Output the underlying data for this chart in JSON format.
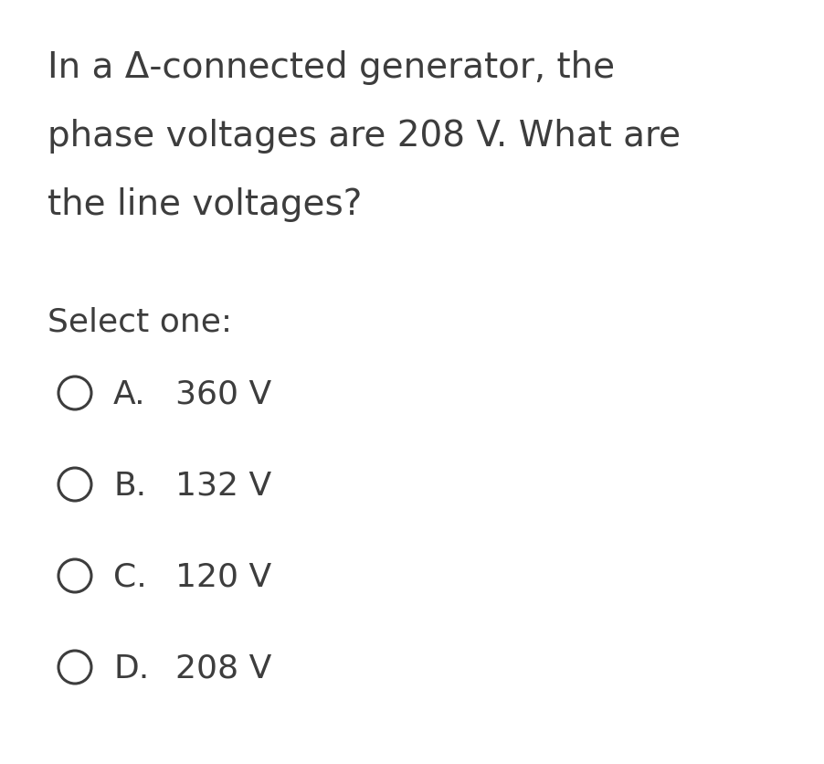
{
  "background_color": "#ffffff",
  "text_color": "#3d3d3d",
  "question_lines": [
    "In a Δ-connected generator, the",
    "phase voltages are 208 V. What are",
    "the line voltages?"
  ],
  "select_label": "Select one:",
  "options": [
    {
      "letter": "A.",
      "text": "360 V"
    },
    {
      "letter": "B.",
      "text": "132 V"
    },
    {
      "letter": "C.",
      "text": "120 V"
    },
    {
      "letter": "D.",
      "text": "208 V"
    }
  ],
  "question_fontsize": 28,
  "select_fontsize": 26,
  "option_fontsize": 26,
  "fig_width": 9.03,
  "fig_height": 8.36
}
